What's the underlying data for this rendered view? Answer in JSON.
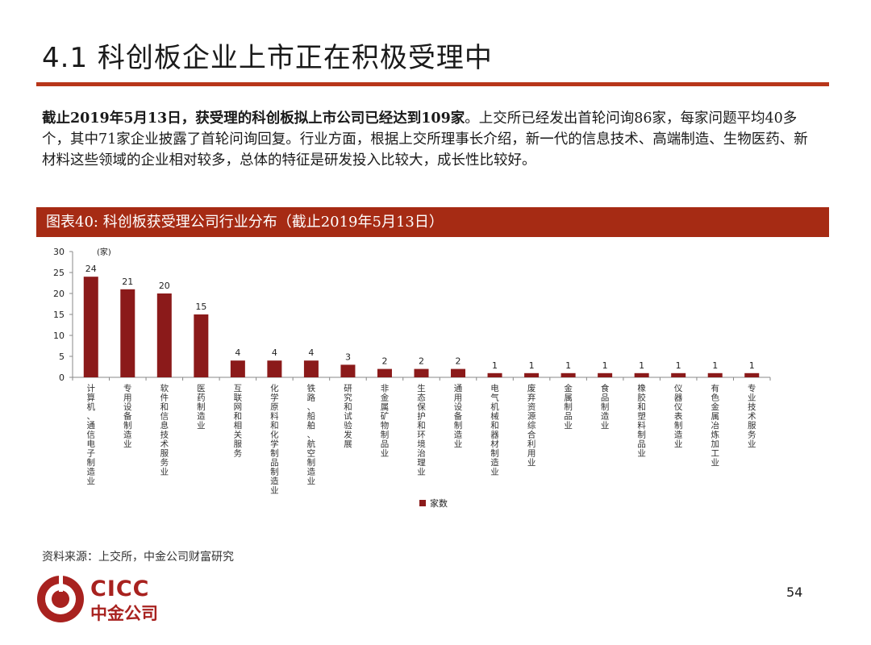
{
  "slide": {
    "title": "4.1 科创板企业上市正在积极受理中",
    "summary_bold": "截止2019年5月13日，获受理的科创板拟上市公司已经达到109家",
    "summary_rest": "。上交所已经发出首轮问询86家，每家问题平均40多个，其中71家企业披露了首轮问询回复。行业方面，根据上交所理事长介绍，新一代的信息技术、高端制造、生物医药、新材料这些领域的企业相对较多，总体的特征是研发投入比较大，成长性比较好。",
    "chart_header": "图表40: 科创板获受理公司行业分布（截止2019年5月13日）",
    "source": "资料来源：上交所，中金公司财富研究",
    "page_number": "54"
  },
  "logo": {
    "en": "CICC",
    "cn": "中金公司"
  },
  "colors": {
    "accent": "#b8361a",
    "header_bg": "#a62b14",
    "bar": "#8b1a1a",
    "logo": "#a8221f"
  },
  "chart_data": {
    "type": "bar",
    "unit_label": "(家)",
    "categories": [
      "计算机、通信电子制造业",
      "专用设备制造业",
      "软件和信息技术服务业",
      "医药制造业",
      "互联网和相关服务",
      "化学原料和化学制品制造业",
      "铁路、船舶、航空制造业",
      "研究和试验发展",
      "非金属矿物制品业",
      "生态保护和环境治理业",
      "通用设备制造业",
      "电气机械和器材制造业",
      "废弃资源综合利用业",
      "金属制品业",
      "食品制造业",
      "橡胶和塑料制品业",
      "仪器仪表制造业",
      "有色金属冶炼加工业",
      "专业技术服务业"
    ],
    "series": [
      {
        "name": "家数",
        "values": [
          24,
          21,
          20,
          15,
          4,
          4,
          4,
          3,
          2,
          2,
          2,
          1,
          1,
          1,
          1,
          1,
          1,
          1,
          1
        ]
      }
    ],
    "ylim": [
      0,
      30
    ],
    "yticks": [
      0,
      5,
      10,
      15,
      20,
      25,
      30
    ],
    "grid": false,
    "legend_position": "bottom-center"
  }
}
